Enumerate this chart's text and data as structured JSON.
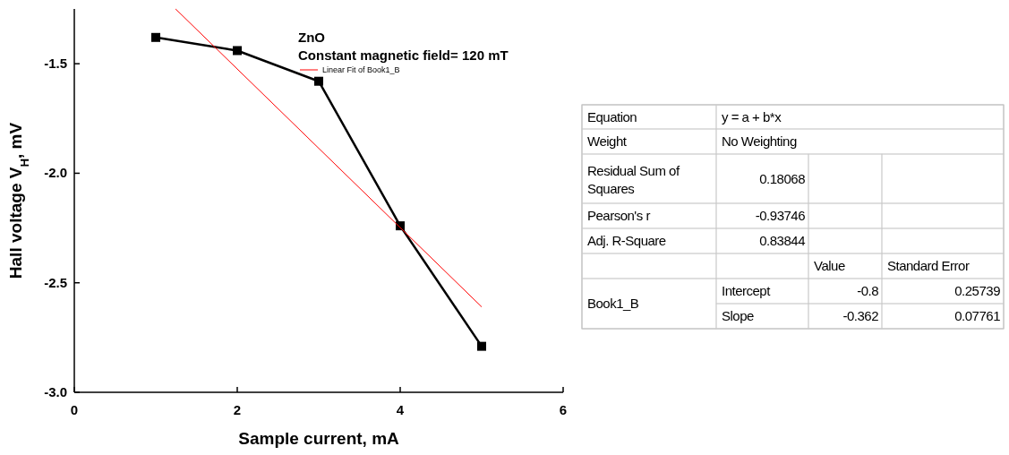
{
  "chart_data": [
    {
      "type": "line",
      "xlabel": "Sample current, mA",
      "ylabel": "Hall voltage V$_{H}$, mV",
      "annotations": [
        "ZnO",
        "Constant magnetic field= 120 mT"
      ],
      "xlim": [
        0,
        6
      ],
      "ylim": [
        -3.0,
        -1.25
      ],
      "xticks": [
        0,
        2,
        4,
        6
      ],
      "yticks": [
        {
          "value": -3.0,
          "label": "-3.0"
        },
        {
          "value": -2.5,
          "label": "-2.5"
        },
        {
          "value": -2.0,
          "label": "-2.0"
        },
        {
          "value": -1.5,
          "label": "-1.5"
        }
      ],
      "legend": "top",
      "series": [
        {
          "color": "#000000",
          "marker": "square",
          "line_style": "solid",
          "x": [
            1,
            2,
            3,
            4,
            5
          ],
          "values": [
            -1.38,
            -1.44,
            -1.58,
            -2.24,
            -2.79
          ]
        },
        {
          "name": "Linear Fit of Book1_B",
          "color": "#ff0000",
          "marker": "none",
          "line_style": "solid",
          "x": [
            1.243,
            5
          ],
          "values": [
            -1.25,
            -2.61
          ]
        }
      ]
    },
    {
      "type": "other",
      "annotations": [
        "Equation",
        "y = a + b*x",
        "Weight",
        "No Weighting",
        "Residual Sum of Squares",
        "0.18068",
        "Pearson's r",
        "-0.93746",
        "Adj. R-Square",
        "0.83844",
        "Value",
        "Standard Error",
        "Book1_B",
        "Intercept",
        "-0.8",
        "0.25739",
        "Slope",
        "-0.362",
        "0.07761"
      ]
    }
  ]
}
